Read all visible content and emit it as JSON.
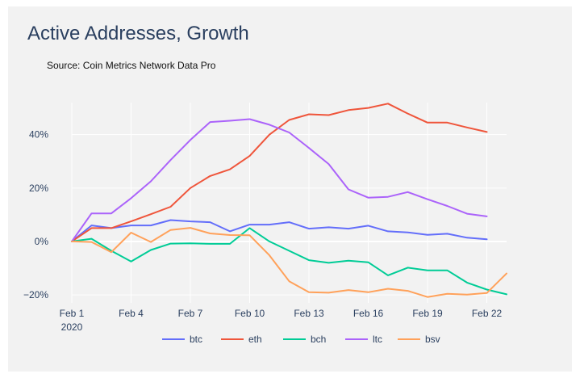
{
  "chart_data": {
    "type": "line",
    "title": "Active Addresses, Growth",
    "subtitle": "Source: Coin Metrics Network Data Pro",
    "xlabel": "",
    "ylabel": "",
    "x_days": [
      1,
      2,
      3,
      4,
      5,
      6,
      7,
      8,
      9,
      10,
      11,
      12,
      13,
      14,
      15,
      16,
      17,
      18,
      19,
      20,
      21,
      22,
      23
    ],
    "x_range": [
      1,
      23
    ],
    "ylim": [
      -23,
      52
    ],
    "x_ticks": [
      {
        "day": 1,
        "label": "Feb 1",
        "sublabel": "2020"
      },
      {
        "day": 4,
        "label": "Feb 4",
        "sublabel": ""
      },
      {
        "day": 7,
        "label": "Feb 7",
        "sublabel": ""
      },
      {
        "day": 10,
        "label": "Feb 10",
        "sublabel": ""
      },
      {
        "day": 13,
        "label": "Feb 13",
        "sublabel": ""
      },
      {
        "day": 16,
        "label": "Feb 16",
        "sublabel": ""
      },
      {
        "day": 19,
        "label": "Feb 19",
        "sublabel": ""
      },
      {
        "day": 22,
        "label": "Feb 22",
        "sublabel": ""
      }
    ],
    "y_ticks": [
      {
        "value": 40,
        "label": "40%"
      },
      {
        "value": 20,
        "label": "20%"
      },
      {
        "value": 0,
        "label": "0%"
      },
      {
        "value": -20,
        "label": "−20%"
      }
    ],
    "legend_position": "bottom-center",
    "series": [
      {
        "name": "btc",
        "color": "#636efa",
        "values": [
          0,
          6,
          5,
          6,
          6,
          8,
          7.5,
          7.2,
          3.8,
          6.3,
          6.3,
          7.2,
          4.8,
          5.3,
          4.8,
          5.9,
          3.8,
          3.4,
          2.5,
          2.9,
          1.4,
          0.8,
          null
        ]
      },
      {
        "name": "eth",
        "color": "#ef553b",
        "values": [
          0,
          5,
          5,
          7.5,
          10.2,
          13,
          20,
          24.5,
          27,
          32,
          40,
          45.5,
          47.6,
          47.3,
          49.2,
          50,
          51.6,
          47.9,
          44.5,
          44.5,
          42.7,
          41,
          null
        ]
      },
      {
        "name": "bch",
        "color": "#00cc96",
        "values": [
          0,
          1,
          -3.5,
          -7.5,
          -3.2,
          -0.8,
          -0.7,
          -0.9,
          -0.9,
          5,
          0,
          -3.5,
          -7,
          -8,
          -7.2,
          -7.8,
          -12.7,
          -9.8,
          -10.8,
          -10.8,
          -15.4,
          -18,
          -19.8
        ]
      },
      {
        "name": "ltc",
        "color": "#ab63fa",
        "values": [
          0,
          10.5,
          10.5,
          16.2,
          22.5,
          30.5,
          38,
          44.7,
          45.2,
          45.8,
          43.7,
          40.8,
          35,
          29,
          19.5,
          16.4,
          16.7,
          18.5,
          15.8,
          13.3,
          10.4,
          9.4,
          null
        ]
      },
      {
        "name": "bsv",
        "color": "#ffa15a",
        "values": [
          0,
          -0.2,
          -4,
          3.3,
          -0.2,
          4.3,
          5.1,
          3,
          2.4,
          2.3,
          -5.2,
          -14.9,
          -19,
          -19.2,
          -18.2,
          -19,
          -17.7,
          -18.5,
          -20.8,
          -19.6,
          -19.9,
          -19.3,
          -12
        ]
      }
    ]
  }
}
